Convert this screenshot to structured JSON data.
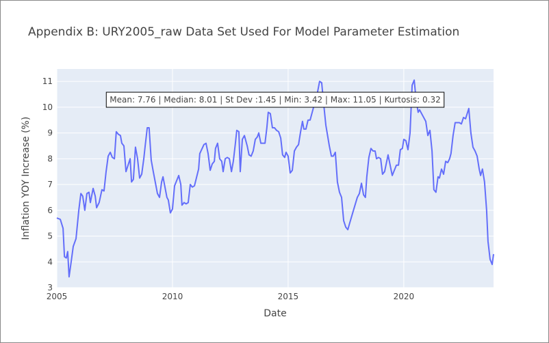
{
  "chart_data": {
    "type": "line",
    "title": "Appendix B: URY2005_raw Data Set Used For Model Parameter Estimation",
    "x_label": "Date",
    "y_label": "Inflation YOY Increase (%)",
    "annotation": "Mean: 7.76 | Median: 8.01 | St Dev :1.45 | Min: 3.42 | Max: 11.05 | Kurtosis: 0.32",
    "xlim": [
      2005,
      2023.88
    ],
    "xticks": [
      2005,
      2010,
      2015,
      2020
    ],
    "ylim": [
      3,
      11.48
    ],
    "yticks": [
      3,
      4,
      5,
      6,
      7,
      8,
      9,
      10,
      11
    ],
    "grid": true,
    "x": [
      2005.0,
      2005.15,
      2005.27,
      2005.33,
      2005.41,
      2005.47,
      2005.53,
      2005.62,
      2005.71,
      2005.83,
      2005.95,
      2006.04,
      2006.12,
      2006.21,
      2006.3,
      2006.39,
      2006.45,
      2006.57,
      2006.66,
      2006.72,
      2006.83,
      2006.95,
      2007.04,
      2007.13,
      2007.22,
      2007.31,
      2007.4,
      2007.49,
      2007.57,
      2007.66,
      2007.75,
      2007.81,
      2007.9,
      2007.99,
      2008.08,
      2008.17,
      2008.23,
      2008.31,
      2008.4,
      2008.49,
      2008.58,
      2008.67,
      2008.76,
      2008.82,
      2008.91,
      2008.99,
      2009.08,
      2009.17,
      2009.35,
      2009.44,
      2009.53,
      2009.59,
      2009.76,
      2009.82,
      2009.91,
      2010.0,
      2010.09,
      2010.27,
      2010.36,
      2010.41,
      2010.5,
      2010.59,
      2010.68,
      2010.77,
      2010.86,
      2010.95,
      2011.13,
      2011.18,
      2011.36,
      2011.45,
      2011.54,
      2011.63,
      2011.72,
      2011.81,
      2011.86,
      2011.95,
      2012.04,
      2012.13,
      2012.19,
      2012.28,
      2012.37,
      2012.46,
      2012.55,
      2012.63,
      2012.72,
      2012.78,
      2012.87,
      2012.93,
      2013.02,
      2013.11,
      2013.23,
      2013.31,
      2013.4,
      2013.49,
      2013.58,
      2013.67,
      2013.73,
      2013.82,
      2013.91,
      2014.0,
      2014.08,
      2014.14,
      2014.23,
      2014.32,
      2014.41,
      2014.5,
      2014.59,
      2014.68,
      2014.76,
      2014.85,
      2014.91,
      2015.0,
      2015.09,
      2015.18,
      2015.27,
      2015.36,
      2015.45,
      2015.53,
      2015.62,
      2015.68,
      2015.77,
      2015.86,
      2015.95,
      2016.04,
      2016.13,
      2016.21,
      2016.36,
      2016.45,
      2016.54,
      2016.63,
      2016.78,
      2016.87,
      2016.95,
      2017.04,
      2017.13,
      2017.22,
      2017.31,
      2017.4,
      2017.49,
      2017.58,
      2017.66,
      2017.84,
      2017.99,
      2018.08,
      2018.17,
      2018.26,
      2018.34,
      2018.4,
      2018.49,
      2018.58,
      2018.67,
      2018.76,
      2018.82,
      2018.91,
      2019.0,
      2019.08,
      2019.17,
      2019.32,
      2019.41,
      2019.5,
      2019.68,
      2019.77,
      2019.85,
      2019.94,
      2020.0,
      2020.09,
      2020.18,
      2020.27,
      2020.36,
      2020.45,
      2020.53,
      2020.62,
      2020.68,
      2020.86,
      2020.95,
      2021.04,
      2021.13,
      2021.22,
      2021.3,
      2021.39,
      2021.48,
      2021.54,
      2021.63,
      2021.72,
      2021.81,
      2021.9,
      2021.98,
      2022.04,
      2022.13,
      2022.22,
      2022.31,
      2022.4,
      2022.49,
      2022.58,
      2022.67,
      2022.81,
      2022.9,
      2022.99,
      2023.08,
      2023.17,
      2023.26,
      2023.32,
      2023.4,
      2023.49,
      2023.58,
      2023.64,
      2023.73,
      2023.82,
      2023.88
    ],
    "series": [
      {
        "name": "URY2005_raw",
        "color": "#636efa",
        "values": [
          5.7,
          5.65,
          5.3,
          4.2,
          4.15,
          4.4,
          3.42,
          4.0,
          4.6,
          4.9,
          6.0,
          6.65,
          6.55,
          6.0,
          6.65,
          6.7,
          6.3,
          6.85,
          6.55,
          6.1,
          6.3,
          6.8,
          6.75,
          7.5,
          8.1,
          8.25,
          8.05,
          8.0,
          9.05,
          8.95,
          8.9,
          8.6,
          8.5,
          7.5,
          7.75,
          8.0,
          7.1,
          7.2,
          8.45,
          8.0,
          7.25,
          7.4,
          8.0,
          8.5,
          9.2,
          9.2,
          7.95,
          7.5,
          6.65,
          6.5,
          7.1,
          7.3,
          6.5,
          6.4,
          5.9,
          6.05,
          6.95,
          7.35,
          7.0,
          6.2,
          6.3,
          6.25,
          6.3,
          7.0,
          6.9,
          6.95,
          7.6,
          8.2,
          8.55,
          8.6,
          8.2,
          7.55,
          7.8,
          7.9,
          8.4,
          8.6,
          8.0,
          7.9,
          7.5,
          8.0,
          8.05,
          8.0,
          7.5,
          7.9,
          8.6,
          9.1,
          9.05,
          7.5,
          8.75,
          8.9,
          8.5,
          8.15,
          8.1,
          8.3,
          8.75,
          8.85,
          9.0,
          8.6,
          8.6,
          8.6,
          9.2,
          9.8,
          9.75,
          9.2,
          9.2,
          9.1,
          9.05,
          8.8,
          8.15,
          8.05,
          8.25,
          8.1,
          7.45,
          7.55,
          8.3,
          8.45,
          8.55,
          9.0,
          9.45,
          9.15,
          9.15,
          9.5,
          9.5,
          9.8,
          10.1,
          10.3,
          11.0,
          10.95,
          10.1,
          9.3,
          8.5,
          8.1,
          8.1,
          8.25,
          7.1,
          6.7,
          6.5,
          5.6,
          5.35,
          5.25,
          5.5,
          6.05,
          6.5,
          6.65,
          7.05,
          6.6,
          6.5,
          7.3,
          8.05,
          8.4,
          8.3,
          8.3,
          8.0,
          8.05,
          8.0,
          7.4,
          7.5,
          8.15,
          7.75,
          7.35,
          7.75,
          7.75,
          8.35,
          8.4,
          8.75,
          8.7,
          8.35,
          9.0,
          10.85,
          11.05,
          10.3,
          9.8,
          9.9,
          9.6,
          9.45,
          8.9,
          9.1,
          8.3,
          6.8,
          6.7,
          7.3,
          7.25,
          7.6,
          7.4,
          7.9,
          7.85,
          8.0,
          8.2,
          8.9,
          9.4,
          9.4,
          9.4,
          9.35,
          9.6,
          9.55,
          9.95,
          9.0,
          8.45,
          8.3,
          8.1,
          7.6,
          7.35,
          7.6,
          7.1,
          6.0,
          4.8,
          4.1,
          3.9,
          4.3
        ]
      }
    ]
  }
}
